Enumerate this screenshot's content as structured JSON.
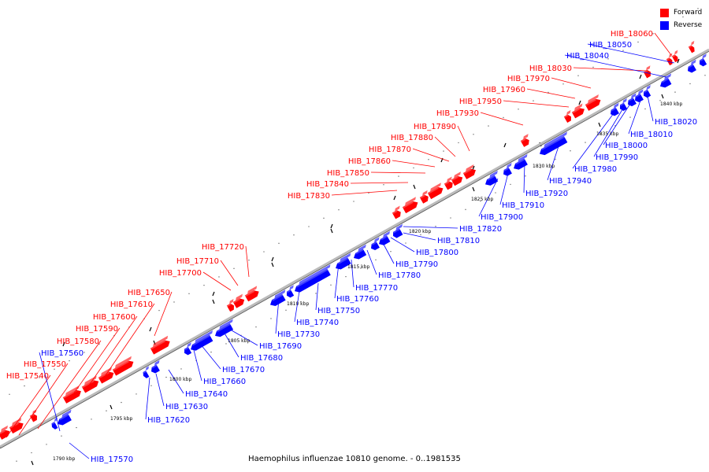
{
  "legend": {
    "forward": {
      "label": "Forward",
      "color": "#ff0000"
    },
    "reverse": {
      "label": "Reverse",
      "color": "#0000ff"
    }
  },
  "caption": "Haemophilus influenzae 10810 genome. - 0..1981535",
  "scale": {
    "tick_unit": "kbp",
    "labels": [
      "1790 kbp",
      "1795 kbp",
      "1800 kbp",
      "1805 kbp",
      "1810 kbp",
      "1815 kbp",
      "1820 kbp",
      "1825 kbp",
      "1830 kbp",
      "1835 kbp",
      "1840 kbp"
    ]
  },
  "genes": {
    "forward": [
      "HIB_17540",
      "HIB_17550",
      "HIB_17580",
      "HIB_17590",
      "HIB_17600",
      "HIB_17610",
      "HIB_17650",
      "HIB_17700",
      "HIB_17710",
      "HIB_17720",
      "HIB_17830",
      "HIB_17840",
      "HIB_17850",
      "HIB_17860",
      "HIB_17870",
      "HIB_17880",
      "HIB_17890",
      "HIB_17930",
      "HIB_17950",
      "HIB_17960",
      "HIB_17970",
      "HIB_18030",
      "HIB_18060"
    ],
    "reverse": [
      "HIB_17560",
      "HIB_17570",
      "HIB_17620",
      "HIB_17630",
      "HIB_17640",
      "HIB_17660",
      "HIB_17670",
      "HIB_17680",
      "HIB_17690",
      "HIB_17730",
      "HIB_17740",
      "HIB_17750",
      "HIB_17760",
      "HIB_17770",
      "HIB_17780",
      "HIB_17790",
      "HIB_17800",
      "HIB_17810",
      "HIB_17820",
      "HIB_17900",
      "HIB_17910",
      "HIB_17920",
      "HIB_17940",
      "HIB_17980",
      "HIB_17990",
      "HIB_18000",
      "HIB_18010",
      "HIB_18020",
      "HIB_18040",
      "HIB_18050"
    ]
  }
}
